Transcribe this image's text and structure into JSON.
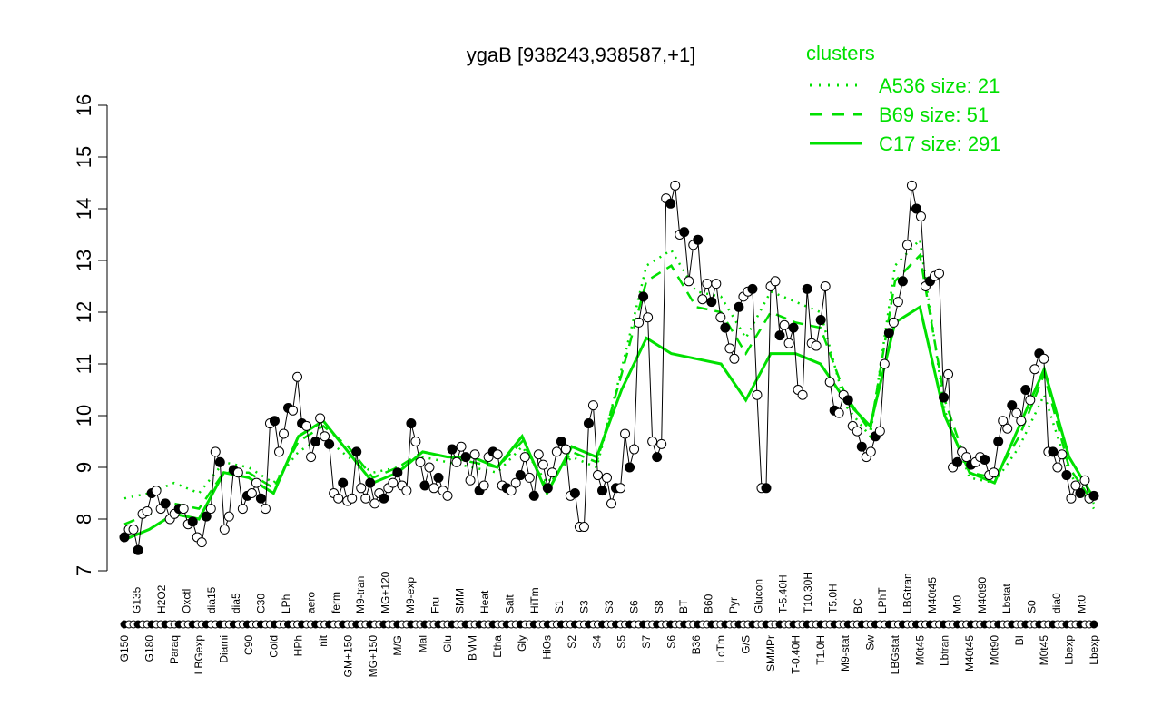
{
  "chart_data": {
    "type": "line",
    "title": "ygaB [938243,938587,+1]",
    "xlabel": "",
    "ylabel": "",
    "ylim": [
      7,
      16
    ],
    "yticks": [
      7,
      8,
      9,
      10,
      11,
      12,
      13,
      14,
      15,
      16
    ],
    "grid": false,
    "legend": {
      "title": "clusters",
      "placement": "top-right",
      "color": "#00e000",
      "entries": [
        {
          "label": "A536 size: 21",
          "style": "dotted"
        },
        {
          "label": "B69 size: 51",
          "style": "dashed"
        },
        {
          "label": "C17 size: 291",
          "style": "solid"
        }
      ]
    },
    "xtick_labels": [
      "G150",
      "G135",
      "G180",
      "H2O2",
      "Paraq",
      "Oxctl",
      "LBGexp",
      "dia15",
      "Diami",
      "dia5",
      "C90",
      "C30",
      "Cold",
      "LPh",
      "HPh",
      "aero",
      "nit",
      "ferm",
      "GM+150",
      "M9-tran",
      "MG+150",
      "MG+120",
      "M/G",
      "M9-exp",
      "Mal",
      "Fru",
      "Glu",
      "SMM",
      "BMM",
      "Heat",
      "Etha",
      "Salt",
      "Gly",
      "HiTm",
      "HiOs",
      "S1",
      "S2",
      "S3",
      "S4",
      "S3",
      "S5",
      "S6",
      "S7",
      "S8",
      "S6",
      "BT",
      "B36",
      "B60",
      "LoTm",
      "Pyr",
      "G/S",
      "Glucon",
      "SMMPr",
      "T-5.40H",
      "T-0.40H",
      "T10.30H",
      "T1.0H",
      "T5.0H",
      "M9-stat",
      "BC",
      "Sw",
      "LPhT",
      "LBGstat",
      "LBGtran",
      "M0t45",
      "M40t45",
      "Lbtran",
      "Mt0",
      "M40t45",
      "M40t90",
      "M0t90",
      "Lbstat",
      "BI",
      "S0",
      "M0t45",
      "dia0",
      "Lbexp",
      "Mt0",
      "Lbexp"
    ],
    "series": [
      {
        "type": "points",
        "color": "#000000",
        "values": [
          7.65,
          7.8,
          7.8,
          7.4,
          8.1,
          8.15,
          8.5,
          8.55,
          8.2,
          8.3,
          8.0,
          8.1,
          8.2,
          8.2,
          7.9,
          7.95,
          7.65,
          7.55,
          8.05,
          8.2,
          9.3,
          9.1,
          7.8,
          8.05,
          8.95,
          8.9,
          8.2,
          8.45,
          8.5,
          8.7,
          8.4,
          8.2,
          9.85,
          9.9,
          9.3,
          9.65,
          10.15,
          10.1,
          10.75,
          9.85,
          9.8,
          9.2,
          9.5,
          9.95,
          9.6,
          9.45,
          8.5,
          8.4,
          8.7,
          8.35,
          8.4,
          9.3,
          8.6,
          8.4,
          8.7,
          8.3,
          8.5,
          8.4,
          8.6,
          8.7,
          8.9,
          8.65,
          8.55,
          9.85,
          9.5,
          9.1,
          8.65,
          9.0,
          8.6,
          8.8,
          8.55,
          8.45,
          9.35,
          9.1,
          9.4,
          9.2,
          8.75,
          9.25,
          8.55,
          8.65,
          9.2,
          9.3,
          9.25,
          8.65,
          8.6,
          8.55,
          8.7,
          8.85,
          9.2,
          8.8,
          8.45,
          9.25,
          9.05,
          8.6,
          8.9,
          9.3,
          9.5,
          9.35,
          8.45,
          8.5,
          7.85,
          7.85,
          9.85,
          10.2,
          8.85,
          8.55,
          8.8,
          8.3,
          8.6,
          8.6,
          9.65,
          9.0,
          9.35,
          11.8,
          12.3,
          11.9,
          9.5,
          9.2,
          9.45,
          14.2,
          14.1,
          14.45,
          13.5,
          13.55,
          12.6,
          13.3,
          13.4,
          12.25,
          12.55,
          12.2,
          12.55,
          11.9,
          11.7,
          11.3,
          11.1,
          12.1,
          12.3,
          12.4,
          12.45,
          10.4,
          8.6,
          8.6,
          12.5,
          12.6,
          11.55,
          11.75,
          11.4,
          11.7,
          10.5,
          10.4,
          12.45,
          11.4,
          11.35,
          11.85,
          12.5,
          10.65,
          10.1,
          10.05,
          10.4,
          10.3,
          9.8,
          9.7,
          9.4,
          9.2,
          9.3,
          9.6,
          9.7,
          11.0,
          11.6,
          11.8,
          12.2,
          12.6,
          13.3,
          14.45,
          14.0,
          13.85,
          12.5,
          12.6,
          12.7,
          12.75,
          10.35,
          10.8,
          9.0,
          9.1,
          9.3,
          9.2,
          9.05,
          9.1,
          9.2,
          9.15,
          8.85,
          8.9,
          9.5,
          9.9,
          9.75,
          10.2,
          10.05,
          9.9,
          10.5,
          10.3,
          10.9,
          11.2,
          11.1,
          9.3,
          9.3,
          9.0,
          9.25,
          8.85,
          8.4,
          8.65,
          8.5,
          8.75,
          8.4,
          8.45
        ]
      },
      {
        "name": "C17 size: 291",
        "style": "solid",
        "color": "#00e000",
        "values": [
          7.6,
          7.8,
          8.1,
          8.0,
          8.9,
          8.8,
          8.5,
          9.6,
          9.9,
          9.3,
          8.7,
          8.9,
          9.3,
          9.2,
          9.2,
          9.0,
          9.6,
          8.5,
          9.4,
          9.2,
          10.5,
          11.5,
          11.2,
          11.1,
          11.0,
          10.3,
          11.2,
          11.2,
          11.0,
          10.3,
          9.8,
          11.8,
          12.1,
          10.0,
          8.9,
          8.7,
          9.8,
          10.9,
          9.2,
          8.4
        ]
      },
      {
        "name": "B69 size: 51",
        "style": "dashed",
        "color": "#00e000",
        "values": [
          7.9,
          8.1,
          8.3,
          8.2,
          8.9,
          8.9,
          8.6,
          9.5,
          9.8,
          9.4,
          8.8,
          9.0,
          9.3,
          9.2,
          9.1,
          9.0,
          9.5,
          8.6,
          9.3,
          9.1,
          10.8,
          12.6,
          12.9,
          12.1,
          12.0,
          11.2,
          12.0,
          11.8,
          11.7,
          10.4,
          9.7,
          12.6,
          13.1,
          10.3,
          8.9,
          8.8,
          9.6,
          10.8,
          9.0,
          8.3
        ]
      },
      {
        "name": "A536 size: 21",
        "style": "dotted",
        "color": "#00e000",
        "values": [
          8.4,
          8.5,
          8.7,
          8.5,
          9.1,
          9.0,
          8.7,
          9.3,
          9.6,
          9.2,
          8.9,
          9.0,
          9.2,
          9.1,
          9.0,
          8.9,
          9.4,
          8.7,
          9.2,
          9.0,
          10.9,
          12.9,
          13.2,
          12.4,
          12.3,
          11.5,
          12.4,
          12.2,
          12.0,
          10.2,
          9.6,
          12.9,
          13.4,
          10.1,
          8.8,
          8.7,
          9.4,
          10.4,
          8.9,
          8.2
        ]
      }
    ]
  }
}
